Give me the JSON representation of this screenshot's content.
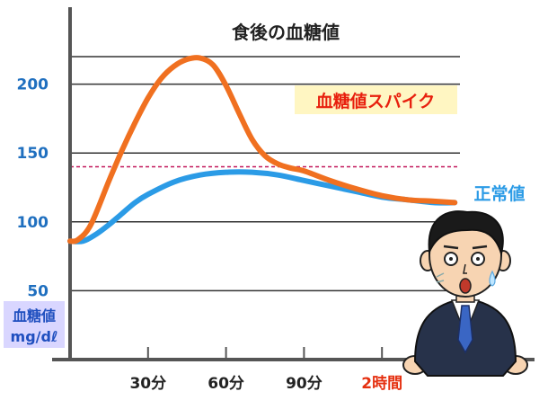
{
  "chart_data": {
    "type": "line",
    "title": "食後の血糖値",
    "ylabel": [
      "血糖値",
      "mg/dℓ"
    ],
    "yticks": [
      50,
      100,
      150,
      200
    ],
    "ylim": [
      0,
      235
    ],
    "xticks": [
      {
        "x": 30,
        "label": "30分"
      },
      {
        "x": 60,
        "label": "60分"
      },
      {
        "x": 90,
        "label": "90分"
      },
      {
        "x": 120,
        "label": "2時間"
      }
    ],
    "xlim": [
      0,
      150
    ],
    "threshold": {
      "value": 140,
      "color": "#c2185b",
      "style": "dashed"
    },
    "grid": true,
    "series": [
      {
        "name": "正常値",
        "color": "#2b9be6",
        "x": [
          0,
          5,
          10,
          15,
          20,
          25,
          30,
          40,
          50,
          60,
          70,
          80,
          90,
          100,
          110,
          120,
          130,
          140,
          148
        ],
        "y": [
          86,
          86,
          91,
          98,
          106,
          114,
          120,
          129,
          134,
          136,
          136,
          134,
          130,
          126,
          122,
          118,
          116,
          114,
          114
        ]
      },
      {
        "name": "血糖値スパイク",
        "color": "#f07020",
        "badge": true,
        "x": [
          0,
          3,
          8,
          15,
          20,
          25,
          30,
          35,
          40,
          45,
          50,
          55,
          60,
          65,
          70,
          75,
          80,
          85,
          90,
          100,
          110,
          120,
          130,
          140,
          148
        ],
        "y": [
          86,
          87,
          98,
          130,
          152,
          172,
          190,
          204,
          213,
          218,
          219,
          214,
          199,
          179,
          160,
          148,
          142,
          139,
          137,
          130,
          124,
          119,
          116,
          115,
          114
        ]
      }
    ]
  },
  "illustration": {
    "icon": "shocked-businessman-icon",
    "colors": {
      "suit": "#27324a",
      "tie": "#3a66c4",
      "skin": "#f7d4b2",
      "hair": "#1a1a1a"
    }
  }
}
